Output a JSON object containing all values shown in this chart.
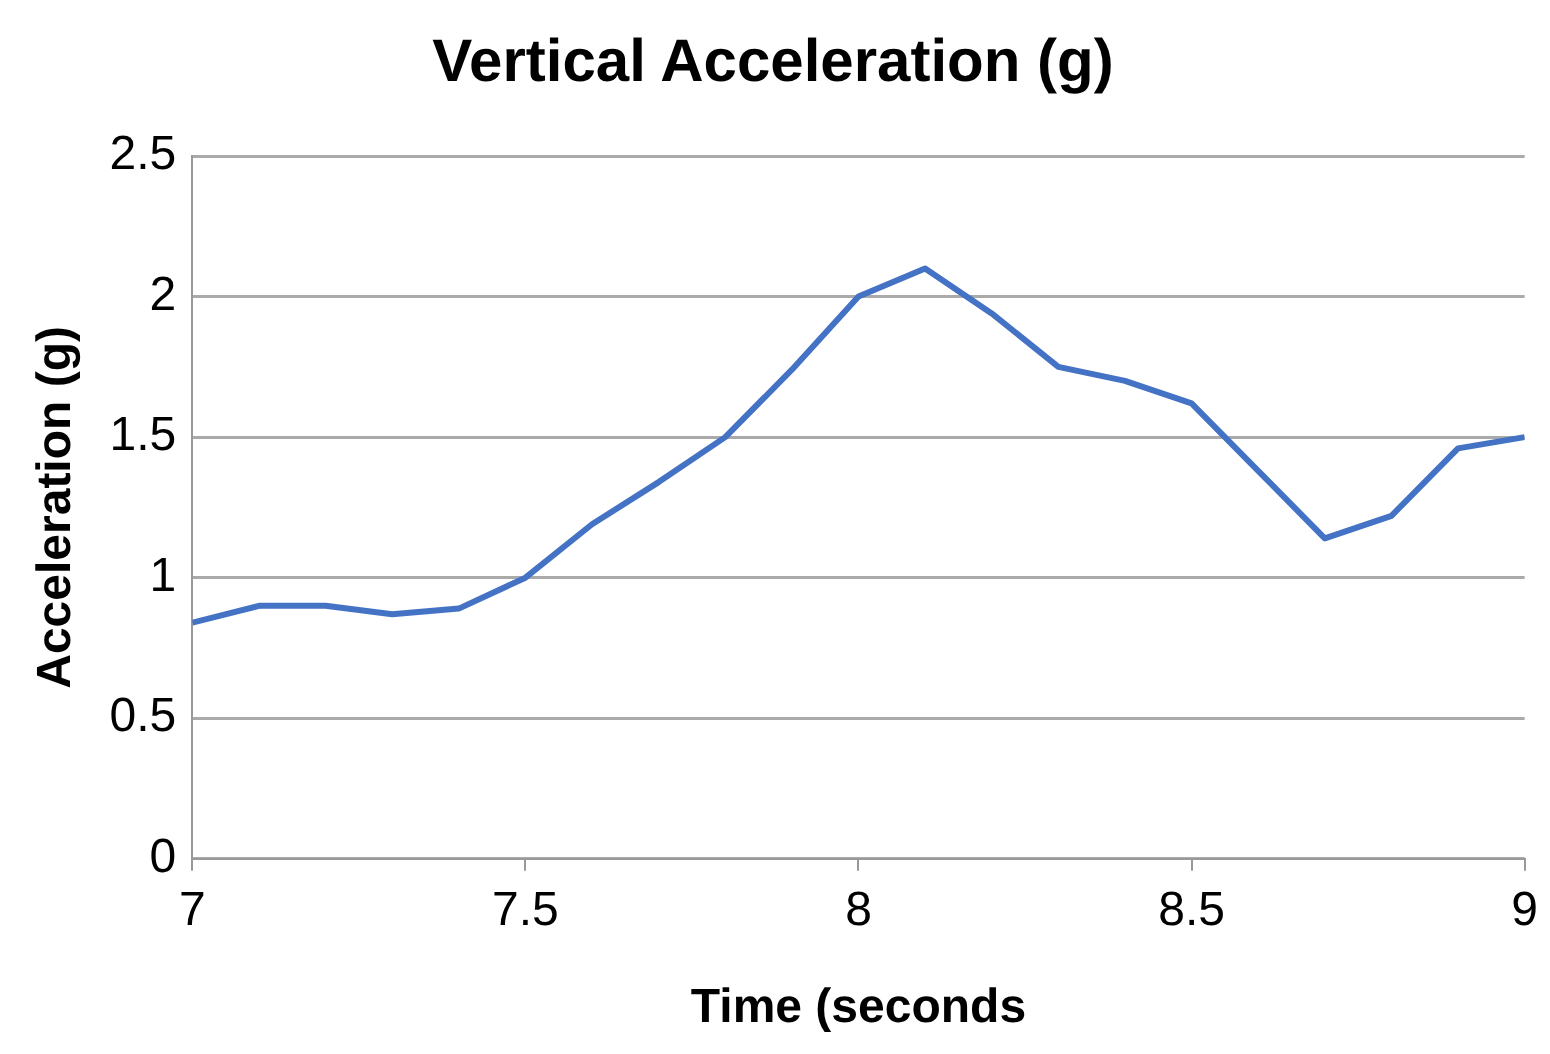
{
  "chart_data": {
    "type": "line",
    "title": "Vertical Acceleration (g)",
    "xlabel": "Time (seconds",
    "ylabel": "Acceleration (g)",
    "x": [
      7,
      7.1,
      7.2,
      7.3,
      7.4,
      7.5,
      7.6,
      7.7,
      7.8,
      7.9,
      8,
      8.1,
      8.2,
      8.3,
      8.4,
      8.5,
      8.6,
      8.7,
      8.8,
      8.9,
      9
    ],
    "series": [
      {
        "color": "#4472c4",
        "values": [
          0.84,
          0.9,
          0.9,
          0.87,
          0.89,
          1.0,
          1.19,
          1.34,
          1.5,
          1.74,
          2.0,
          2.1,
          1.94,
          1.75,
          1.7,
          1.62,
          1.38,
          1.14,
          1.22,
          1.46,
          1.5
        ]
      }
    ],
    "xlim": [
      7,
      9
    ],
    "xticks": [
      7,
      7.5,
      8,
      8.5,
      9
    ],
    "ylim": [
      0,
      2.5
    ],
    "yticks": [
      0,
      0.5,
      1,
      1.5,
      2,
      2.5
    ],
    "grid": "y",
    "legend": false,
    "marker": "none",
    "line_style": "solid"
  }
}
